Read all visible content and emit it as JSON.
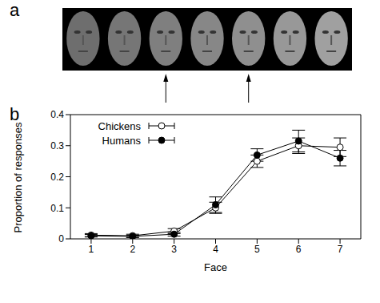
{
  "panel_labels": [
    "a",
    "b"
  ],
  "face_strip": {
    "faces": 7,
    "arrows_at": [
      3,
      5
    ]
  },
  "chart_data": {
    "type": "line",
    "x_label": "Face",
    "y_label": "Proportion of responses",
    "x": [
      1,
      2,
      3,
      4,
      5,
      6,
      7
    ],
    "xlim": [
      0.5,
      7.5
    ],
    "xticks": [
      1,
      2,
      3,
      4,
      5,
      6,
      7
    ],
    "ylim": [
      0,
      0.4
    ],
    "yticks": [
      0,
      0.1,
      0.2,
      0.3,
      0.4
    ],
    "legend": "upper left",
    "series": [
      {
        "name": "Chickens",
        "color": "#000000",
        "marker": "open_circle",
        "values": [
          0.012,
          0.01,
          0.025,
          0.1,
          0.25,
          0.3,
          0.295
        ],
        "errors": [
          0.005,
          0.005,
          0.008,
          0.018,
          0.02,
          0.025,
          0.03
        ]
      },
      {
        "name": "Humans",
        "color": "#000000",
        "marker": "filled_circle",
        "values": [
          0.01,
          0.008,
          0.015,
          0.11,
          0.27,
          0.315,
          0.26
        ],
        "errors": [
          0.004,
          0.004,
          0.006,
          0.025,
          0.02,
          0.035,
          0.025
        ]
      }
    ]
  }
}
